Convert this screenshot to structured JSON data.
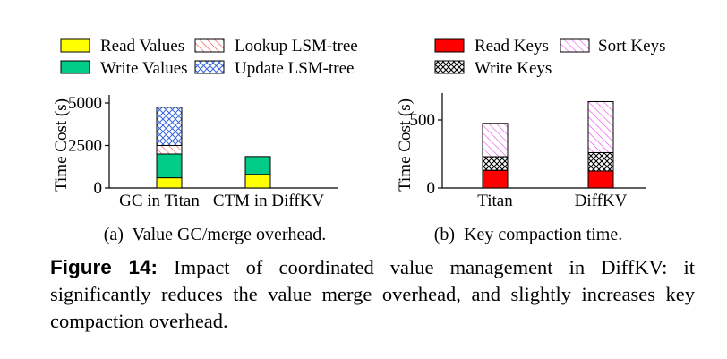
{
  "caption": {
    "label": "Figure 14:",
    "text": "Impact of coordinated value management in DiffKV: it significantly reduces the value merge overhead, and slightly increases key compaction overhead."
  },
  "colors": {
    "yellow": "#ffff00",
    "green": "#00cc88",
    "red": "#ff0000",
    "hatch_red": "#ff4444",
    "hatch_blue": "#3366dd",
    "hatch_magenta": "#ee44ee",
    "hatch_black": "#000000"
  },
  "chart_data": [
    {
      "type": "bar",
      "stacked": true,
      "subcaption": "(a)  Value GC/merge overhead.",
      "ylabel": "Time Cost (s)",
      "xlabel": "",
      "ylim": [
        0,
        5500
      ],
      "yticks": [
        0,
        2500,
        5000
      ],
      "categories": [
        "GC in Titan",
        "CTM in DiffKV"
      ],
      "legend": [
        "Read Values",
        "Lookup LSM-tree",
        "Write Values",
        "Update LSM-tree"
      ],
      "legend_position": "top",
      "series": [
        {
          "name": "Read Values",
          "pattern": "solid",
          "color": "#ffff00",
          "values": [
            600,
            800
          ]
        },
        {
          "name": "Write Values",
          "pattern": "solid",
          "color": "#00cc88",
          "values": [
            1400,
            1050
          ]
        },
        {
          "name": "Lookup LSM-tree",
          "pattern": "diagonal",
          "color": "#ff4444",
          "values": [
            500,
            0
          ]
        },
        {
          "name": "Update LSM-tree",
          "pattern": "crosshatch",
          "color": "#3366dd",
          "values": [
            2250,
            0
          ]
        }
      ]
    },
    {
      "type": "bar",
      "stacked": true,
      "subcaption": "(b)  Key compaction time.",
      "ylabel": "Time Cost (s)",
      "xlabel": "",
      "ylim": [
        0,
        700
      ],
      "yticks": [
        0,
        500
      ],
      "categories": [
        "Titan",
        "DiffKV"
      ],
      "legend": [
        "Read Keys",
        "Sort Keys",
        "Write Keys"
      ],
      "legend_position": "top",
      "series": [
        {
          "name": "Read Keys",
          "pattern": "solid",
          "color": "#ff0000",
          "values": [
            130,
            125
          ]
        },
        {
          "name": "Write Keys",
          "pattern": "crosshatch",
          "color": "#000000",
          "values": [
            100,
            135
          ]
        },
        {
          "name": "Sort Keys",
          "pattern": "diagonal",
          "color": "#ee44ee",
          "values": [
            245,
            375
          ]
        }
      ]
    }
  ]
}
